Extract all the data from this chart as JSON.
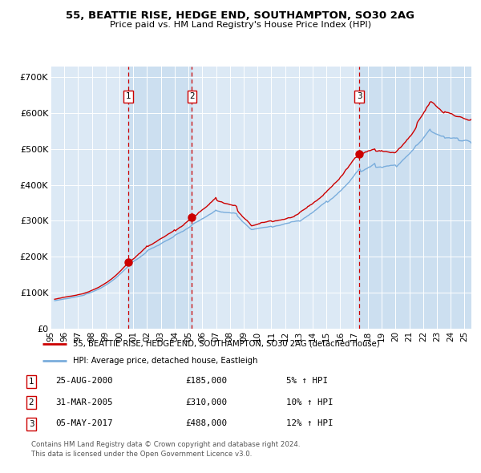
{
  "title": "55, BEATTIE RISE, HEDGE END, SOUTHAMPTON, SO30 2AG",
  "subtitle": "Price paid vs. HM Land Registry's House Price Index (HPI)",
  "background_color": "#ffffff",
  "plot_bg_color": "#dce9f5",
  "grid_color": "#ffffff",
  "red_line_color": "#cc0000",
  "blue_line_color": "#7aaddc",
  "sale_dot_color": "#cc0000",
  "vline_color": "#cc0000",
  "ylim": [
    0,
    730000
  ],
  "yticks": [
    0,
    100000,
    200000,
    300000,
    400000,
    500000,
    600000,
    700000
  ],
  "ytick_labels": [
    "£0",
    "£100K",
    "£200K",
    "£300K",
    "£400K",
    "£500K",
    "£600K",
    "£700K"
  ],
  "xlim_start": 1995.3,
  "xlim_end": 2025.5,
  "xtick_years": [
    1995,
    1996,
    1997,
    1998,
    1999,
    2000,
    2001,
    2002,
    2003,
    2004,
    2005,
    2006,
    2007,
    2008,
    2009,
    2010,
    2011,
    2012,
    2013,
    2014,
    2015,
    2016,
    2017,
    2018,
    2019,
    2020,
    2021,
    2022,
    2023,
    2024,
    2025
  ],
  "transactions": [
    {
      "label": "1",
      "year": 2000.65,
      "price": 185000,
      "date": "25-AUG-2000",
      "pct": "5%",
      "dir": "↑"
    },
    {
      "label": "2",
      "year": 2005.25,
      "price": 310000,
      "date": "31-MAR-2005",
      "pct": "10%",
      "dir": "↑"
    },
    {
      "label": "3",
      "year": 2017.37,
      "price": 488000,
      "date": "05-MAY-2017",
      "pct": "12%",
      "dir": "↑"
    }
  ],
  "legend_entries": [
    "55, BEATTIE RISE, HEDGE END, SOUTHAMPTON, SO30 2AG (detached house)",
    "HPI: Average price, detached house, Eastleigh"
  ],
  "footnote1": "Contains HM Land Registry data © Crown copyright and database right 2024.",
  "footnote2": "This data is licensed under the Open Government Licence v3.0."
}
